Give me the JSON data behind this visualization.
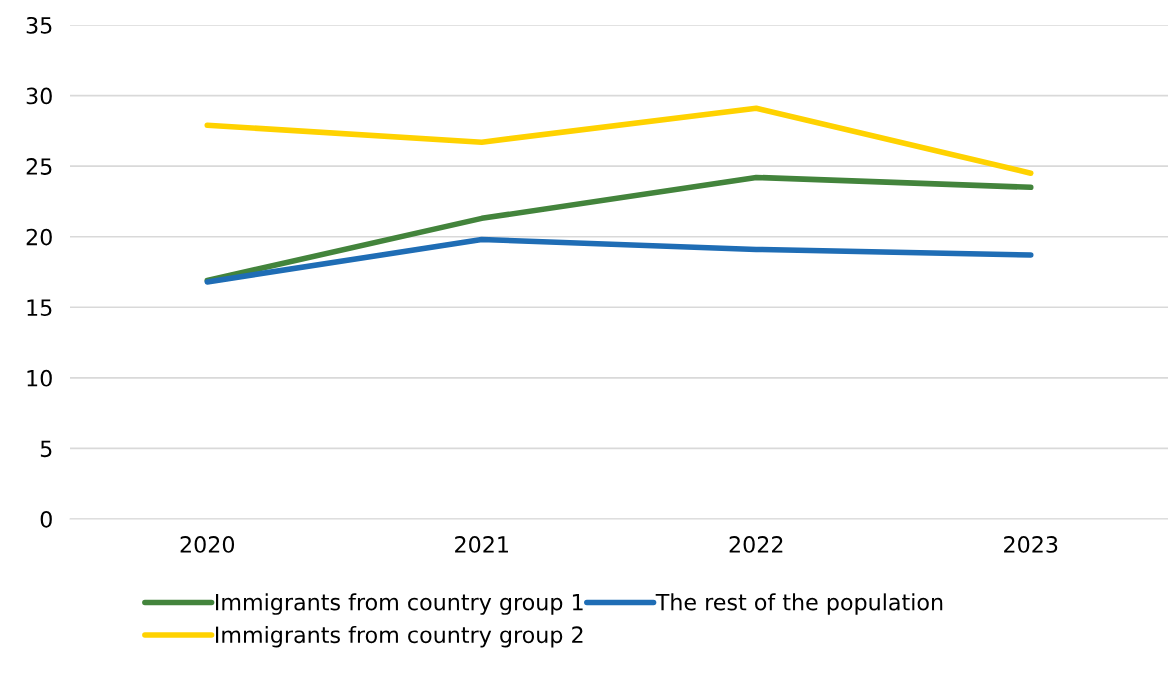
{
  "chart_data": {
    "type": "line",
    "categories": [
      "2020",
      "2021",
      "2022",
      "2023"
    ],
    "series": [
      {
        "name": "Immigrants from country group 1",
        "color": "#43843c",
        "values": [
          16.9,
          21.3,
          24.2,
          23.5
        ]
      },
      {
        "name": "Immigrants from country group 2",
        "color": "#ffd200",
        "values": [
          27.9,
          26.7,
          29.1,
          24.5
        ]
      },
      {
        "name": "The rest of the population",
        "color": "#1f6db5",
        "values": [
          16.8,
          19.8,
          19.1,
          18.7
        ]
      }
    ],
    "ylim": [
      0,
      35
    ],
    "yticks": [
      0,
      5,
      10,
      15,
      20,
      25,
      30,
      35
    ],
    "grid": "y",
    "legend": "bottom",
    "marker": "none",
    "line_style": "solid"
  }
}
